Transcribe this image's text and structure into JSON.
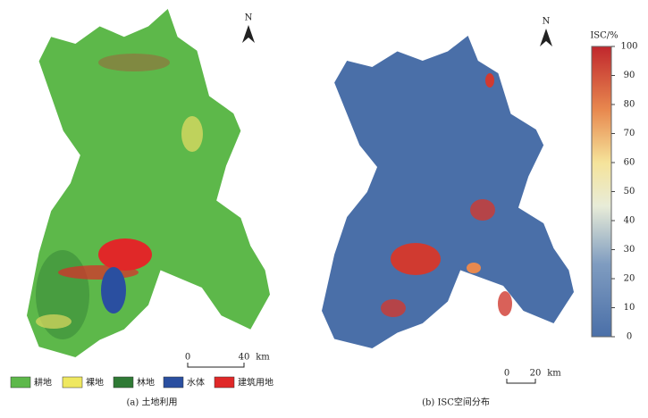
{
  "panels": [
    {
      "north": "N",
      "caption": "(a) 土地利用",
      "legend": [
        "耕地",
        "裸地",
        "林地",
        "水体",
        "建筑用地"
      ],
      "scale_bar": {
        "start": "0",
        "end": "40",
        "unit": "km"
      }
    },
    {
      "north": "N",
      "caption": "(b) ISC空间分布",
      "scale_bar": {
        "start": "0",
        "end": "20",
        "unit": "km"
      },
      "colorbar": {
        "title": "ISC/%",
        "lim": [
          0,
          100
        ],
        "ticks": [
          0,
          10,
          20,
          30,
          40,
          50,
          60,
          70,
          80,
          90,
          100
        ]
      }
    }
  ]
}
